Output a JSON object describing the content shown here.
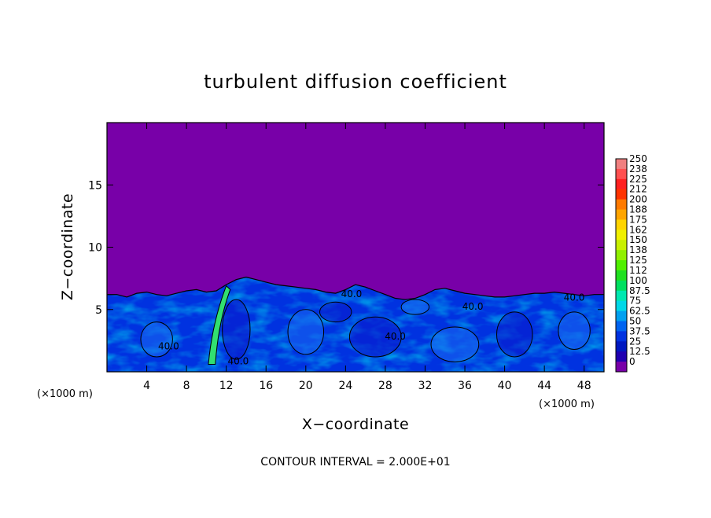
{
  "chart_data": {
    "type": "heatmap",
    "title": "turbulent diffusion coefficient",
    "xlabel": "X−coordinate",
    "ylabel": "Z−coordinate",
    "x_unit_left": "(×1000 m)",
    "x_unit_right": "(×1000 m)",
    "xlim": [
      0,
      50
    ],
    "ylim": [
      0,
      20
    ],
    "xticks": [
      4,
      8,
      12,
      16,
      20,
      24,
      28,
      32,
      36,
      40,
      44,
      48
    ],
    "yticks": [
      5,
      10,
      15
    ],
    "colorbar": {
      "levels": [
        "250",
        "238",
        "225",
        "212",
        "200",
        "188",
        "175",
        "162",
        "150",
        "138",
        "125",
        "112",
        "100",
        "87.5",
        "75",
        "62.5",
        "50",
        "37.5",
        "25",
        "12.5",
        "0"
      ],
      "colors": [
        "#f08080",
        "#ff5050",
        "#ff2020",
        "#ff3300",
        "#ff7a00",
        "#ffa500",
        "#ffd400",
        "#f0f000",
        "#c8f000",
        "#90f000",
        "#50f000",
        "#20e020",
        "#00e060",
        "#00e8b0",
        "#00d8e8",
        "#00a0f0",
        "#0064f0",
        "#0032e0",
        "#0018c0",
        "#2000b0",
        "#7800a8"
      ]
    },
    "contour_interval": "CONTOUR INTERVAL = 2.000E+01",
    "contour_labels": [
      {
        "text": "40.0",
        "x": 24.6,
        "z": 6.0
      },
      {
        "text": "40.0",
        "x": 36.8,
        "z": 5.0
      },
      {
        "text": "40.0",
        "x": 47.0,
        "z": 5.7
      },
      {
        "text": "40.0",
        "x": 29.0,
        "z": 2.6
      },
      {
        "text": "40.0",
        "x": 6.2,
        "z": 1.8
      },
      {
        "text": "40.0",
        "x": 13.2,
        "z": 0.6
      }
    ],
    "boundary_layer_top_z": [
      6.2,
      6.2,
      6.0,
      6.3,
      6.4,
      6.2,
      6.1,
      6.3,
      6.5,
      6.6,
      6.4,
      6.5,
      7.0,
      7.4,
      7.6,
      7.4,
      7.2,
      7.0,
      6.9,
      6.8,
      6.7,
      6.6,
      6.4,
      6.3,
      6.6,
      7.0,
      6.8,
      6.5,
      6.2,
      5.9,
      5.8,
      5.9,
      6.2,
      6.6,
      6.7,
      6.5,
      6.3,
      6.2,
      6.1,
      6.0,
      6.0,
      6.1,
      6.2,
      6.3,
      6.3,
      6.4,
      6.3,
      6.2,
      6.1,
      6.2,
      6.2
    ],
    "background_value_label": "0",
    "bl_value_label": "37.5"
  }
}
